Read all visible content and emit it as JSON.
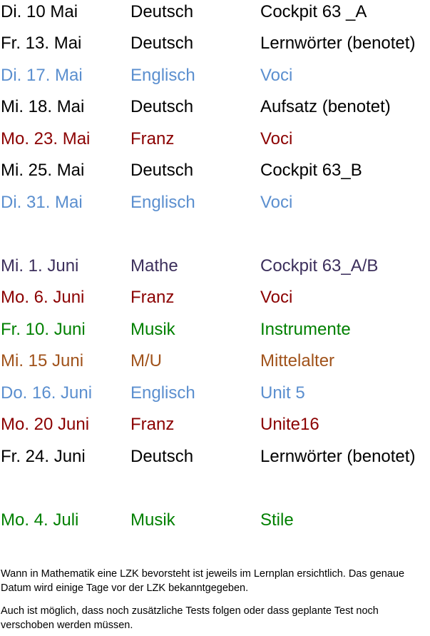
{
  "schedule": [
    {
      "date": "Di. 10  Mai",
      "subject": "Deutsch",
      "topic": "Cockpit 63 _A",
      "color": "#000000"
    },
    {
      "date": "Fr. 13. Mai",
      "subject": "Deutsch",
      "topic": "Lernwörter (benotet)",
      "color": "#000000"
    },
    {
      "date": "Di. 17. Mai",
      "subject": "Englisch",
      "topic": "Voci",
      "color": "#5b8fcf"
    },
    {
      "date": "Mi. 18. Mai",
      "subject": "Deutsch",
      "topic": "Aufsatz (benotet)",
      "color": "#000000"
    },
    {
      "date": "Mo. 23. Mai",
      "subject": "Franz",
      "topic": "Voci",
      "color": "#8b0000"
    },
    {
      "date": "Mi. 25. Mai",
      "subject": "Deutsch",
      "topic": "Cockpit 63_B",
      "color": "#000000"
    },
    {
      "date": "Di. 31. Mai",
      "subject": "Englisch",
      "topic": "Voci",
      "color": "#5b8fcf"
    },
    {
      "date": "Mi. 1. Juni",
      "subject": "Mathe",
      "topic": "Cockpit 63_A/B",
      "color": "#3c2f5c"
    },
    {
      "date": "Mo. 6. Juni",
      "subject": "Franz",
      "topic": "Voci",
      "color": "#8b0000"
    },
    {
      "date": "Fr. 10. Juni",
      "subject": "Musik",
      "topic": "Instrumente",
      "color": "#008000"
    },
    {
      "date": "Mi. 15 Juni",
      "subject": "M/U",
      "topic": "Mittelalter",
      "color": "#a0521a"
    },
    {
      "date": "Do. 16. Juni",
      "subject": "Englisch",
      "topic": "Unit 5",
      "color": "#5b8fcf"
    },
    {
      "date": "Mo. 20 Juni",
      "subject": "Franz",
      "topic": "Unite16",
      "color": "#8b0000"
    },
    {
      "date": "Fr. 24. Juni",
      "subject": "Deutsch",
      "topic": "Lernwörter (benotet)",
      "color": "#000000"
    },
    {
      "date": "Mo. 4. Juli",
      "subject": "Musik",
      "topic": "Stile",
      "color": "#008000"
    }
  ],
  "notes": {
    "paragraph_1": "Wann in Mathematik eine LZK bevorsteht ist jeweils im Lernplan ersichtlich. Das genaue Datum wird einige Tage vor der LZK bekanntgegeben.",
    "paragraph_2": "Auch ist möglich, dass noch zusätzliche Tests folgen oder dass geplante Test noch verschoben werden müssen."
  }
}
